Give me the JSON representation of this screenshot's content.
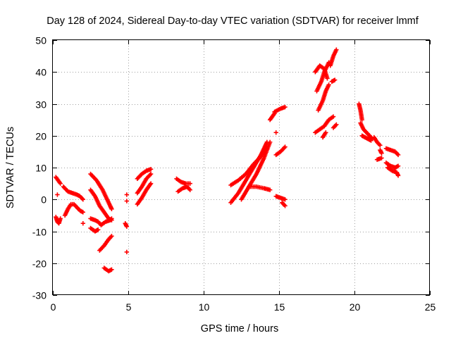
{
  "chart_data": {
    "type": "scatter",
    "title": "Day 128 of 2024, Sidereal Day-to-day VTEC variation (SDTVAR) for receiver lmmf",
    "xlabel": "GPS time / hours",
    "ylabel": "SDTVAR / TECUs",
    "xlim": [
      0,
      25
    ],
    "ylim": [
      -30,
      50
    ],
    "xticks": [
      0,
      5,
      10,
      15,
      20,
      25
    ],
    "yticks": [
      -30,
      -20,
      -10,
      0,
      10,
      20,
      30,
      40,
      50
    ],
    "grid": true,
    "marker": "+",
    "color": "#ff0000",
    "segments": [
      {
        "x": [
          0.2,
          0.35,
          0.5
        ],
        "y": [
          7,
          6,
          5
        ]
      },
      {
        "x": [
          0.2,
          0.3,
          0.4,
          0.5
        ],
        "y": [
          -5.5,
          -7,
          -7.5,
          -6
        ]
      },
      {
        "x": [
          0.3
        ],
        "y": [
          1.5
        ]
      },
      {
        "x": [
          0.7,
          1.0,
          1.3,
          1.6,
          1.8,
          2.0
        ],
        "y": [
          4,
          2.5,
          2,
          1.5,
          1,
          0
        ]
      },
      {
        "x": [
          0.8,
          1.0,
          1.2,
          1.4,
          1.6,
          1.8,
          2.0
        ],
        "y": [
          -5,
          -3,
          -1.5,
          -1.5,
          -2.5,
          -3.5,
          -4
        ]
      },
      {
        "x": [
          2.0
        ],
        "y": [
          -7.5
        ]
      },
      {
        "x": [
          2.5,
          2.9,
          3.3,
          3.6,
          3.8,
          3.9
        ],
        "y": [
          8,
          6,
          3,
          0,
          -2,
          -3
        ]
      },
      {
        "x": [
          2.5,
          2.8,
          3.1,
          3.4,
          3.7,
          3.9
        ],
        "y": [
          3,
          1,
          -2,
          -4,
          -6,
          -6.5
        ]
      },
      {
        "x": [
          2.5,
          2.8,
          3.0,
          3.2
        ],
        "y": [
          -6,
          -6.5,
          -7,
          -8
        ]
      },
      {
        "x": [
          2.5,
          2.8,
          3.0
        ],
        "y": [
          -9,
          -10,
          -9.5
        ]
      },
      {
        "x": [
          3.2,
          3.5,
          3.8,
          3.9
        ],
        "y": [
          -8,
          -7,
          -6.5,
          -6
        ]
      },
      {
        "x": [
          3.1,
          3.4,
          3.7,
          3.9
        ],
        "y": [
          -16,
          -14.5,
          -12.5,
          -11.5
        ]
      },
      {
        "x": [
          3.4,
          3.7,
          3.9
        ],
        "y": [
          -21.5,
          -22.5,
          -22
        ]
      },
      {
        "x": [
          4.9
        ],
        "y": [
          1.5
        ]
      },
      {
        "x": [
          4.9
        ],
        "y": [
          -0.5
        ]
      },
      {
        "x": [
          4.8,
          4.9
        ],
        "y": [
          -7.5,
          -8.5
        ]
      },
      {
        "x": [
          4.9
        ],
        "y": [
          -16.5
        ]
      },
      {
        "x": [
          5.6,
          5.9,
          6.2,
          6.5
        ],
        "y": [
          6.5,
          8,
          9,
          9.5
        ]
      },
      {
        "x": [
          5.6,
          5.9,
          6.2,
          6.5
        ],
        "y": [
          2,
          4,
          6.5,
          8
        ]
      },
      {
        "x": [
          5.6,
          5.9,
          6.2,
          6.5
        ],
        "y": [
          -1.5,
          0.5,
          3,
          5
        ]
      },
      {
        "x": [
          8.2,
          8.5,
          8.8,
          9.1
        ],
        "y": [
          6.5,
          5.5,
          5,
          5
        ]
      },
      {
        "x": [
          8.3,
          8.6,
          8.9,
          9.1
        ],
        "y": [
          2.5,
          3.5,
          4,
          3
        ]
      },
      {
        "x": [
          11.8,
          12.3,
          12.8,
          13.3,
          13.8,
          14.2
        ],
        "y": [
          4.5,
          6,
          8,
          11,
          13.5,
          16
        ]
      },
      {
        "x": [
          11.8,
          12.3,
          12.8,
          13.3,
          13.8,
          14.2
        ],
        "y": [
          -1,
          2,
          6,
          10,
          14,
          18
        ]
      },
      {
        "x": [
          12.5,
          13.0,
          13.5,
          14.0,
          14.4
        ],
        "y": [
          0,
          4,
          8,
          13,
          18
        ]
      },
      {
        "x": [
          13.0,
          13.5,
          14.0,
          14.4
        ],
        "y": [
          4,
          4,
          3.5,
          3
        ]
      },
      {
        "x": [
          14.4,
          14.7
        ],
        "y": [
          25,
          27
        ]
      },
      {
        "x": [
          14.8
        ],
        "y": [
          21
        ]
      },
      {
        "x": [
          14.7,
          15.1,
          15.4
        ],
        "y": [
          27.5,
          28.5,
          29
        ]
      },
      {
        "x": [
          14.8,
          15.1,
          15.4
        ],
        "y": [
          1,
          0.5,
          0
        ]
      },
      {
        "x": [
          15.2,
          15.4
        ],
        "y": [
          -1,
          -2
        ]
      },
      {
        "x": [
          14.8,
          15.1,
          15.4
        ],
        "y": [
          14,
          15,
          16.5
        ]
      },
      {
        "x": [
          17.4,
          17.7,
          18.0,
          18.2
        ],
        "y": [
          40,
          42,
          41,
          38
        ]
      },
      {
        "x": [
          17.5,
          17.8,
          18.0,
          18.3
        ],
        "y": [
          34,
          37,
          40,
          43
        ]
      },
      {
        "x": [
          17.6,
          17.9,
          18.1,
          18.3
        ],
        "y": [
          28,
          31,
          34,
          36
        ]
      },
      {
        "x": [
          17.4,
          17.7,
          18.0,
          18.3,
          18.6
        ],
        "y": [
          21,
          22,
          23,
          25,
          26
        ]
      },
      {
        "x": [
          18.4,
          18.6,
          18.8
        ],
        "y": [
          42,
          45,
          47
        ]
      },
      {
        "x": [
          18.5,
          18.7
        ],
        "y": [
          37,
          37.5
        ]
      },
      {
        "x": [
          17.9,
          18.1
        ],
        "y": [
          19.5,
          21
        ]
      },
      {
        "x": [
          18.6,
          18.8
        ],
        "y": [
          22.5,
          23.5
        ]
      },
      {
        "x": [
          20.3,
          20.4,
          20.5
        ],
        "y": [
          30,
          28,
          25
        ]
      },
      {
        "x": [
          20.4,
          20.6,
          20.8,
          21.0,
          21.2
        ],
        "y": [
          24,
          22,
          21,
          20,
          19
        ]
      },
      {
        "x": [
          20.5,
          20.7,
          20.9,
          21.1
        ],
        "y": [
          20,
          19.5,
          19,
          18.5
        ]
      },
      {
        "x": [
          21.3,
          21.5,
          21.7
        ],
        "y": [
          19.5,
          18,
          17
        ]
      },
      {
        "x": [
          21.5,
          21.8
        ],
        "y": [
          12.5,
          13
        ]
      },
      {
        "x": [
          21.7,
          21.8
        ],
        "y": [
          15.5,
          14.5
        ]
      },
      {
        "x": [
          22.1,
          22.4,
          22.7,
          22.9
        ],
        "y": [
          16,
          15.5,
          15,
          14
        ]
      },
      {
        "x": [
          22.1,
          22.4,
          22.7,
          22.9
        ],
        "y": [
          11.5,
          10.5,
          10,
          10.5
        ]
      },
      {
        "x": [
          22.2,
          22.5,
          22.8,
          22.9
        ],
        "y": [
          10,
          9,
          8.5,
          7.5
        ]
      }
    ]
  }
}
